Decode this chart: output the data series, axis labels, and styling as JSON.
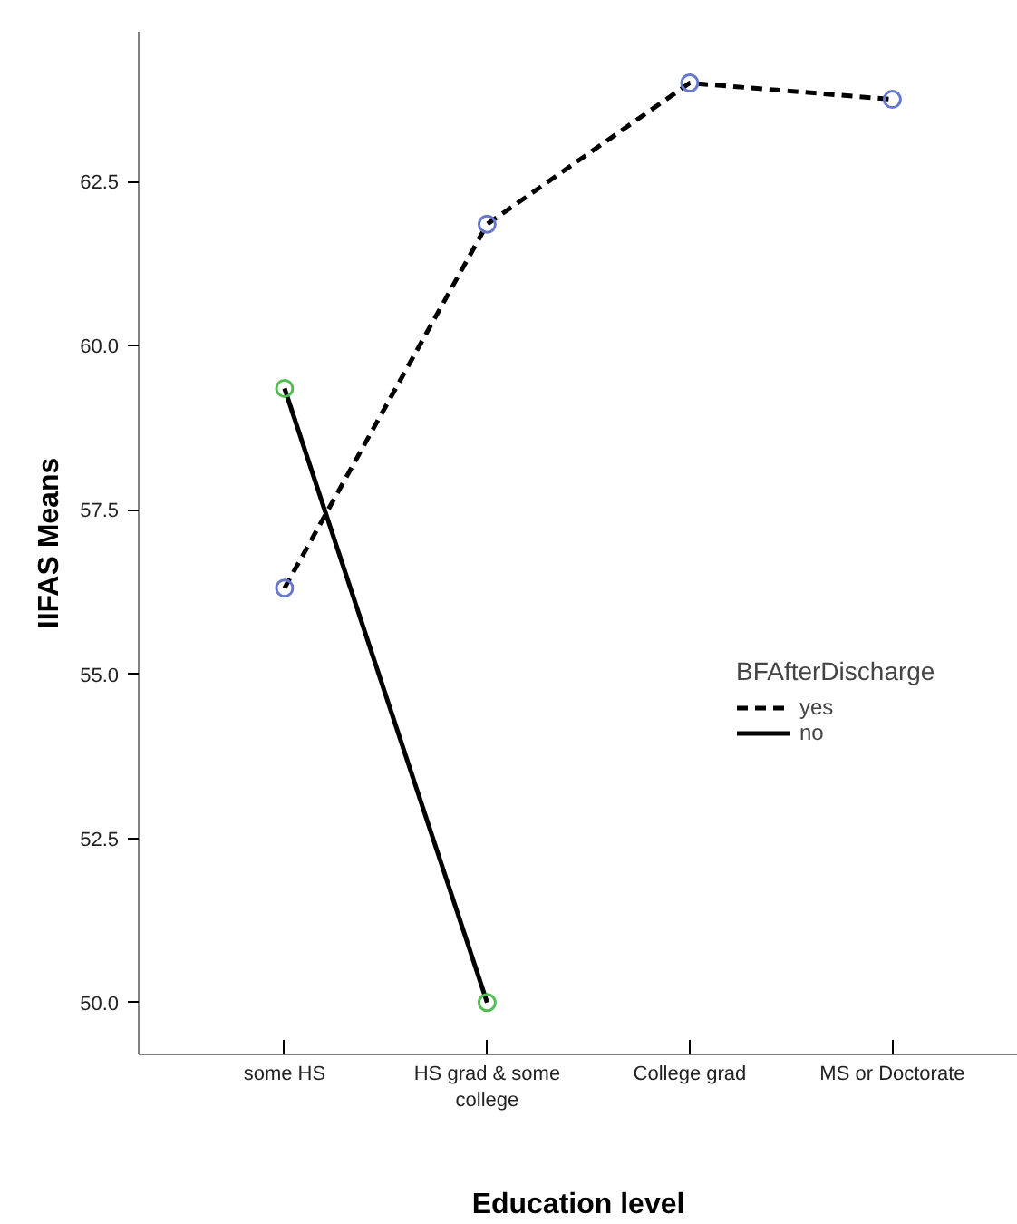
{
  "chart_data": {
    "type": "line",
    "xlabel": "Education level",
    "ylabel": "IIFAS Means",
    "legend_title": "BFAfterDischarge",
    "categories": [
      "some HS",
      "HS grad & some college",
      "College grad",
      "MS or Doctorate"
    ],
    "series": [
      {
        "name": "yes",
        "color": "#000000",
        "colors": [
          "#6677cc",
          "#6677cc",
          "#6677cc",
          "#6677cc"
        ],
        "line_style": "dashed",
        "values": [
          56.31,
          61.85,
          64.0,
          63.75
        ]
      },
      {
        "name": "no",
        "color": "#000000",
        "colors": [
          "#55bb55",
          "#55bb55",
          null,
          null
        ],
        "line_style": "solid",
        "values": [
          59.35,
          50.0,
          null,
          null
        ]
      }
    ],
    "ylim": [
      49.21,
      64.78
    ],
    "yticks": [
      {
        "value": 50,
        "label": "50.0"
      },
      52.5,
      {
        "value": 55,
        "label": "55.0"
      },
      57.5,
      {
        "value": 60,
        "label": "60.0"
      },
      62.5
    ],
    "grid": false,
    "legend": "right",
    "marker": "circle"
  }
}
